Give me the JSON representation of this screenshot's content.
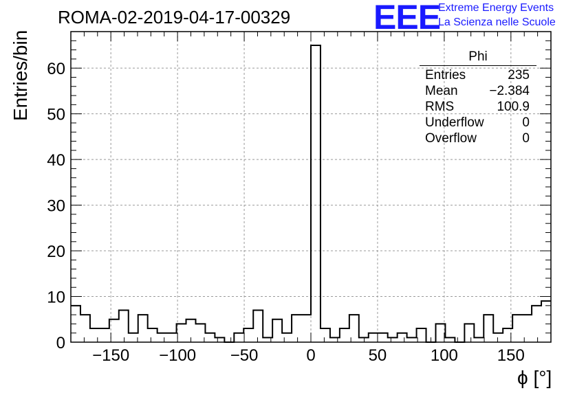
{
  "title": "ROMA-02-2019-04-17-00329",
  "logo": {
    "text": "EEE",
    "line1": "Extreme Energy Events",
    "line2": "La Scienza nelle Scuole",
    "color": "#1a1aff"
  },
  "stats": {
    "name": "Phi",
    "rows": [
      {
        "label": "Entries",
        "value": "235"
      },
      {
        "label": "Mean",
        "value": "−2.384"
      },
      {
        "label": "RMS",
        "value": "100.9"
      },
      {
        "label": "Underflow",
        "value": "0"
      },
      {
        "label": "Overflow",
        "value": "0"
      }
    ]
  },
  "chart_data": {
    "type": "bar",
    "histogram": true,
    "xlabel": "ϕ [°]",
    "ylabel": "Entries/bin",
    "xlim": [
      -180,
      180
    ],
    "ylim": [
      0,
      68
    ],
    "bin_width": 7.2,
    "x_ticks": [
      "−150",
      "−100",
      "−50",
      "0",
      "50",
      "100",
      "150"
    ],
    "x_tick_values": [
      -150,
      -100,
      -50,
      0,
      50,
      100,
      150
    ],
    "y_ticks": [
      "0",
      "10",
      "20",
      "30",
      "40",
      "50",
      "60"
    ],
    "y_tick_values": [
      0,
      10,
      20,
      30,
      40,
      50,
      60
    ],
    "grid": true,
    "values": [
      8,
      6,
      3,
      3,
      5,
      7,
      2,
      6,
      3,
      2,
      2,
      4,
      5,
      4,
      2,
      1,
      0,
      2,
      3,
      7,
      1,
      5,
      2,
      6,
      6,
      65,
      3,
      1,
      3,
      6,
      1,
      2,
      2,
      1,
      2,
      1,
      3,
      0,
      4,
      1,
      0,
      4,
      1,
      6,
      2,
      3,
      6,
      6,
      8,
      9
    ]
  }
}
